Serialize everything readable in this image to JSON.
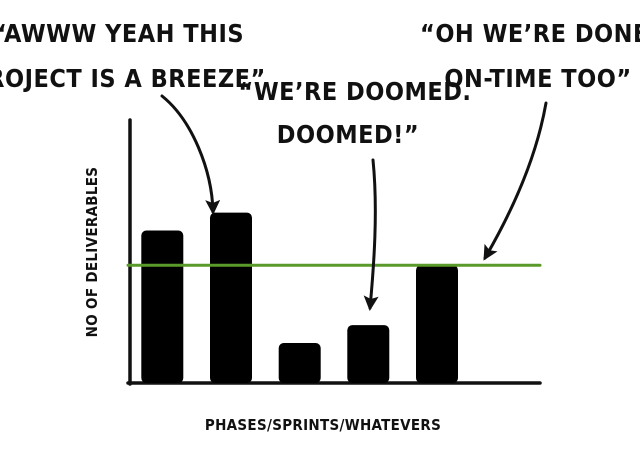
{
  "chart_data": {
    "type": "bar",
    "title": "",
    "xlabel": "PHASES/SPRINTS/WHATEVERS",
    "ylabel": "NO OF DELIVERABLES",
    "categories": [
      "",
      "",
      "",
      "",
      "",
      ""
    ],
    "values": [
      145,
      162,
      38,
      55,
      112,
      0
    ],
    "ylim": [
      0,
      250
    ],
    "grid": false,
    "target_line": {
      "value": 112,
      "color": "#5a9a2a"
    },
    "bar_color": "#000000",
    "annotations": [
      {
        "lines": [
          "“AWWW YEAH THIS",
          "PROJECT IS A BREEZE”"
        ],
        "points_to_bar": 0
      },
      {
        "lines": [
          "“WE’RE DOOMED.",
          "DOOMED!”"
        ],
        "points_to_bar": 2
      },
      {
        "lines": [
          "“OH WE’RE DONE...",
          "ON-TIME TOO”"
        ],
        "points_to_bar": 4
      }
    ]
  }
}
